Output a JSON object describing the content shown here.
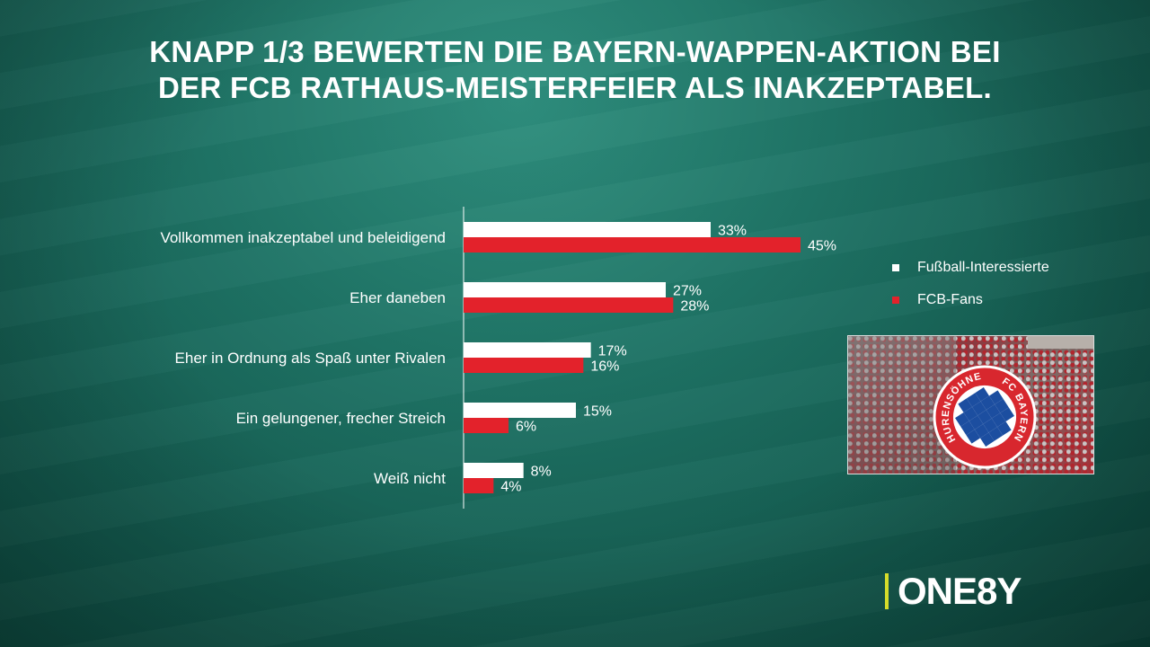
{
  "title": {
    "line1": "KNAPP 1/3 BEWERTEN DIE BAYERN-WAPPEN-AKTION BEI",
    "line2": "DER FCB RATHAUS-MEISTERFEIER ALS INAKZEPTABEL."
  },
  "chart_data": {
    "type": "bar",
    "orientation": "horizontal",
    "categories": [
      "Vollkommen inakzeptabel und beleidigend",
      "Eher daneben",
      "Eher in Ordnung als Spaß unter Rivalen",
      "Ein gelungener, frecher Streich",
      "Weiß nicht"
    ],
    "series": [
      {
        "name": "Fußball-Interessierte",
        "values": [
          33,
          27,
          17,
          15,
          8
        ],
        "labels": [
          "33%",
          "27%",
          "17%",
          "15%",
          "8%"
        ],
        "color": "#ffffff"
      },
      {
        "name": "FCB-Fans",
        "values": [
          45,
          28,
          16,
          6,
          4
        ],
        "labels": [
          "45%",
          "28%",
          "16%",
          "6%",
          "4%"
        ],
        "color": "#e3222b"
      }
    ],
    "unit": "%",
    "xlim": [
      0,
      45
    ],
    "grid": false,
    "legend": "right"
  },
  "photo": {
    "crest_text_left": "HURENSÖHNE",
    "crest_text_right": "FC BAYERN",
    "colors": {
      "crest_red": "#d8272e",
      "crest_blue": "#1c4ea0"
    }
  },
  "brand": {
    "logo_text": "ONE8Y",
    "accent": "#d6dc2a"
  }
}
